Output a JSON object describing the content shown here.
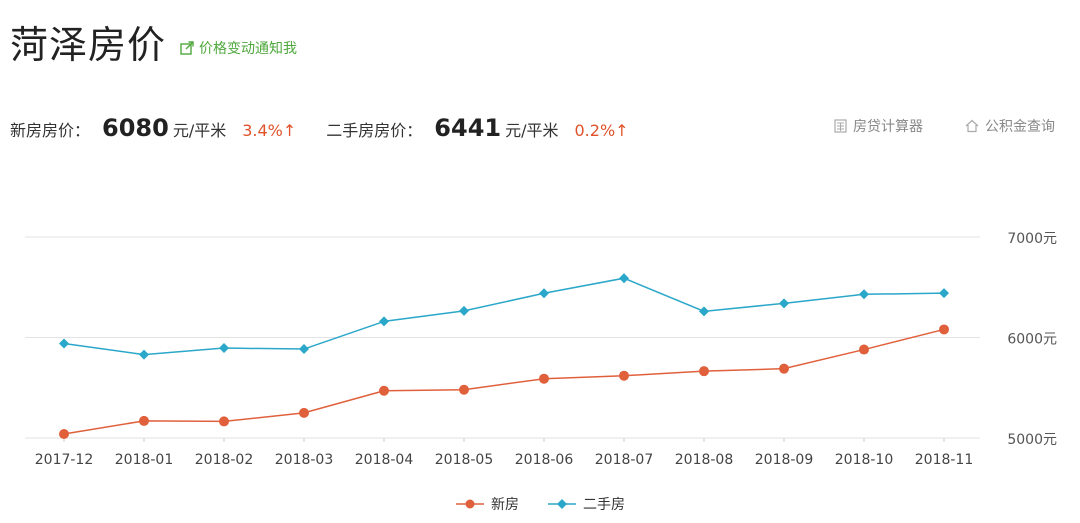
{
  "header": {
    "title": "菏泽房价",
    "notify_label": "价格变动通知我"
  },
  "prices": {
    "new_label": "新房房价：",
    "new_value": "6080",
    "new_unit": "元/平米",
    "new_change": "3.4%↑",
    "second_label": "二手房房价：",
    "second_value": "6441",
    "second_unit": "元/平米",
    "second_change": "0.2%↑"
  },
  "tools": {
    "calculator_label": "房贷计算器",
    "fund_label": "公积金查询"
  },
  "colors": {
    "new": "#e0603c",
    "second": "#2aa7c9",
    "accent_green": "#4fa83d",
    "change_red": "#e0522a"
  },
  "chart_data": {
    "type": "line",
    "categories": [
      "2017-12",
      "2018-01",
      "2018-02",
      "2018-03",
      "2018-04",
      "2018-05",
      "2018-06",
      "2018-07",
      "2018-08",
      "2018-09",
      "2018-10",
      "2018-11"
    ],
    "series": [
      {
        "name": "新房",
        "marker": "circle",
        "values": [
          5040,
          5170,
          5165,
          5250,
          5470,
          5480,
          5590,
          5620,
          5665,
          5690,
          5880,
          6080
        ]
      },
      {
        "name": "二手房",
        "marker": "diamond",
        "values": [
          5940,
          5830,
          5895,
          5885,
          6160,
          6265,
          6440,
          6590,
          6260,
          6340,
          6430,
          6441
        ]
      }
    ],
    "yticks": [
      {
        "value": 5000,
        "label": "5000元"
      },
      {
        "value": 6000,
        "label": "6000元"
      },
      {
        "value": 7000,
        "label": "7000元"
      }
    ],
    "ylim": [
      5000,
      7000
    ],
    "grid": true,
    "legend_position": "bottom-center"
  }
}
